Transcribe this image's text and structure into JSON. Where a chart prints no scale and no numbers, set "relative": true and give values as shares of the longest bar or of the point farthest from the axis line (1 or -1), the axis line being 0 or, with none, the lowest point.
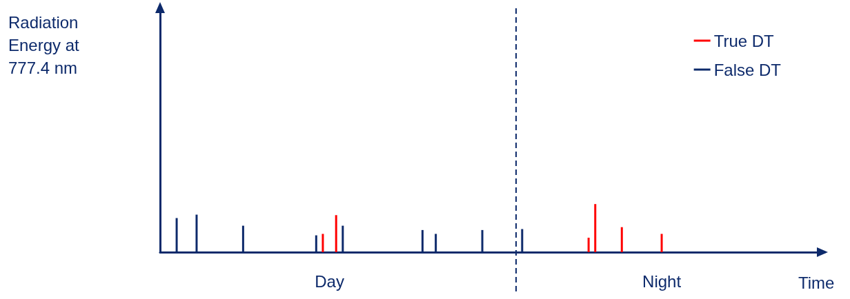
{
  "chart_data": {
    "type": "bar",
    "relative": true,
    "annotations": [
      "Radiation Energy at 777.4 nm"
    ],
    "xlabel": "Time",
    "categories": [
      null,
      null,
      null,
      null,
      null,
      null,
      null,
      null,
      null,
      null,
      null,
      null,
      null,
      null,
      null,
      null,
      null,
      null,
      null,
      null,
      null,
      null,
      null,
      null,
      null,
      "Day",
      null,
      null,
      null,
      null,
      null,
      null,
      null,
      null,
      null,
      null,
      null,
      null,
      null,
      null,
      null,
      null,
      null,
      null,
      null,
      null,
      null,
      null,
      null,
      null,
      null,
      null,
      null,
      null,
      null,
      null,
      null,
      null,
      null,
      null,
      null,
      null,
      null,
      null,
      null,
      null,
      null,
      null,
      null,
      null,
      null,
      null,
      null,
      null,
      null,
      "Night",
      null,
      null,
      null,
      null,
      null,
      null,
      null,
      null,
      null,
      null,
      null,
      null,
      null,
      null,
      null,
      null,
      null,
      null,
      null,
      null,
      null,
      null,
      null,
      null
    ],
    "legend": "top right",
    "grid": false,
    "series": [
      {
        "name": "True DT",
        "color": "#ff0000",
        "values": [
          null,
          null,
          null,
          null,
          null,
          null,
          null,
          null,
          null,
          null,
          null,
          null,
          null,
          null,
          null,
          null,
          null,
          null,
          null,
          null,
          null,
          null,
          null,
          null,
          0.38,
          null,
          0.77,
          null,
          null,
          null,
          null,
          null,
          null,
          null,
          null,
          null,
          null,
          null,
          null,
          null,
          null,
          null,
          null,
          null,
          null,
          null,
          null,
          null,
          null,
          null,
          null,
          null,
          null,
          null,
          null,
          null,
          null,
          null,
          null,
          null,
          null,
          null,
          null,
          null,
          0.3,
          1,
          null,
          null,
          null,
          0.52,
          null,
          null,
          null,
          null,
          null,
          0.38,
          null,
          null,
          null,
          null,
          null,
          null,
          null,
          null,
          null,
          null,
          null,
          null,
          null,
          null,
          null,
          null,
          null,
          null,
          null,
          null,
          null,
          null,
          null,
          null
        ]
      },
      {
        "name": "False DT",
        "color": "#0d2a6b",
        "values": [
          null,
          null,
          0.71,
          null,
          null,
          0.78,
          null,
          null,
          null,
          null,
          null,
          null,
          0.55,
          null,
          null,
          null,
          null,
          null,
          null,
          null,
          null,
          null,
          null,
          0.35,
          null,
          null,
          null,
          0.55,
          null,
          null,
          null,
          null,
          null,
          null,
          null,
          null,
          null,
          null,
          null,
          0.46,
          null,
          0.38,
          null,
          null,
          null,
          null,
          null,
          null,
          0.46,
          null,
          null,
          null,
          null,
          null,
          0.48,
          null,
          null,
          null,
          null,
          null,
          null,
          null,
          null,
          null,
          null,
          null,
          null,
          null,
          null,
          null,
          null,
          null,
          null,
          null,
          null,
          null,
          null,
          null,
          null,
          null,
          null,
          null,
          null,
          null,
          null,
          null,
          null,
          null,
          null,
          null,
          null,
          null,
          null,
          null,
          null,
          null,
          null,
          null,
          null,
          null
        ]
      }
    ]
  }
}
